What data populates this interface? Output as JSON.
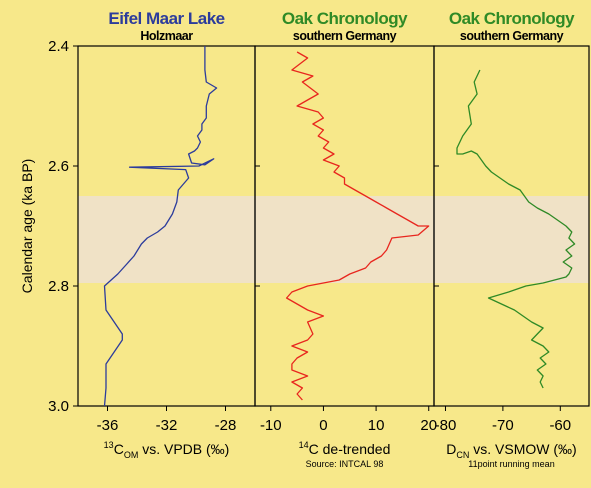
{
  "chart_data": {
    "type": "line",
    "y_axis": {
      "label": "Calendar age (ka BP)",
      "ylim": [
        2.4,
        3.0
      ],
      "reversed": true,
      "ticks": [
        2.4,
        2.6,
        2.8,
        3.0
      ],
      "tick_labels": [
        "2.4",
        "2.6",
        "2.8",
        "3.0"
      ]
    },
    "highlight_band": {
      "from": 2.65,
      "to": 2.795,
      "color": "#f0e2c6"
    },
    "panels": [
      {
        "title": "Eifel Maar Lake",
        "subtitle": "Holzmaar",
        "title_color": "#2c3c9c",
        "color": "#2c3c9c",
        "xlim": [
          -38,
          -26
        ],
        "xticks": [
          -36,
          -32,
          -28
        ],
        "xtick_labels": [
          "-36",
          "-32",
          "-28"
        ],
        "xlabel_super": "13",
        "xlabel_main": "C",
        "xlabel_sub": "OM",
        "xlabel_tail": " vs. VPDB (‰)",
        "note": "",
        "series": {
          "x": [
            -29.4,
            -29.4,
            -29.3,
            -28.6,
            -29.1,
            -29.3,
            -29.3,
            -29.6,
            -29.6,
            -29.9,
            -29.7,
            -29.9,
            -30.1,
            -30.5,
            -30.3,
            -29.4,
            -28.8,
            -29.8,
            -34.5,
            -30.7,
            -30.5,
            -31.2,
            -31.3,
            -31.6,
            -32.1,
            -32.6,
            -33.3,
            -33.7,
            -34.2,
            -35.3,
            -36.2,
            -36.1,
            -35.0,
            -35.0,
            -36.1,
            -36.1,
            -36.2
          ],
          "y": [
            2.4,
            2.44,
            2.46,
            2.47,
            2.48,
            2.5,
            2.52,
            2.53,
            2.54,
            2.55,
            2.56,
            2.57,
            2.575,
            2.58,
            2.595,
            2.598,
            2.588,
            2.6,
            2.602,
            2.606,
            2.62,
            2.64,
            2.66,
            2.68,
            2.7,
            2.71,
            2.72,
            2.73,
            2.75,
            2.78,
            2.8,
            2.84,
            2.88,
            2.89,
            2.93,
            2.97,
            3.0
          ]
        }
      },
      {
        "title": "Oak Chronology",
        "subtitle": "southern Germany",
        "title_color": "#2f8a26",
        "color": "#e8261e",
        "xlim": [
          -13,
          21
        ],
        "xticks": [
          -10,
          0,
          10,
          20
        ],
        "xtick_labels": [
          "-10",
          "0",
          "10",
          "20"
        ],
        "xlabel_super": "14",
        "xlabel_main": "C de-trended",
        "xlabel_sub": "",
        "xlabel_tail": "",
        "note": "Source: INTCAL 98",
        "series": {
          "x": [
            -5,
            -3,
            -6,
            -2,
            -4,
            -1,
            -3,
            -5,
            -1,
            0,
            -2,
            0,
            -1,
            1,
            0,
            2,
            0,
            3,
            2,
            4,
            4,
            6,
            8,
            10,
            12,
            14,
            16,
            18,
            20,
            18,
            13,
            12,
            11,
            9,
            8,
            5,
            3,
            0,
            -3,
            -6,
            -7,
            -5,
            -3,
            0,
            -3,
            -2,
            -3,
            -6,
            -3,
            -5,
            -6,
            -6,
            -3,
            -6,
            -4,
            -5,
            -4
          ],
          "y": [
            2.41,
            2.42,
            2.44,
            2.45,
            2.46,
            2.48,
            2.49,
            2.5,
            2.51,
            2.52,
            2.53,
            2.54,
            2.55,
            2.56,
            2.57,
            2.58,
            2.59,
            2.6,
            2.61,
            2.62,
            2.63,
            2.64,
            2.65,
            2.66,
            2.67,
            2.68,
            2.69,
            2.7,
            2.7,
            2.715,
            2.72,
            2.74,
            2.75,
            2.76,
            2.77,
            2.78,
            2.79,
            2.795,
            2.8,
            2.81,
            2.82,
            2.83,
            2.84,
            2.85,
            2.86,
            2.88,
            2.89,
            2.9,
            2.91,
            2.92,
            2.93,
            2.94,
            2.95,
            2.96,
            2.97,
            2.98,
            2.99
          ]
        }
      },
      {
        "title": "Oak Chronology",
        "subtitle": "southern Germany",
        "title_color": "#2f8a26",
        "color": "#2f8a26",
        "xlim": [
          -82,
          -55
        ],
        "xticks": [
          -80,
          -70,
          -60
        ],
        "xtick_labels": [
          "-80",
          "-70",
          "-60"
        ],
        "xlabel_super": "",
        "xlabel_main": "D",
        "xlabel_sub": "CN",
        "xlabel_tail": " vs. VSMOW (‰)",
        "note": "11point running mean",
        "series": {
          "x": [
            -74,
            -75,
            -74.5,
            -76,
            -75.5,
            -77,
            -78,
            -78,
            -77,
            -75.5,
            -74.5,
            -73,
            -72,
            -70.5,
            -69,
            -67,
            -65.5,
            -64,
            -62,
            -60.5,
            -59,
            -58,
            -58.5,
            -57.5,
            -59,
            -58,
            -59.5,
            -58,
            -58.5,
            -59,
            -61,
            -63,
            -66,
            -69,
            -72.5,
            -68,
            -65,
            -63,
            -64,
            -65,
            -63,
            -62,
            -63.5,
            -62.5,
            -64,
            -63,
            -63.5,
            -63
          ],
          "y": [
            2.44,
            2.46,
            2.48,
            2.5,
            2.53,
            2.55,
            2.57,
            2.58,
            2.58,
            2.575,
            2.58,
            2.6,
            2.61,
            2.62,
            2.63,
            2.64,
            2.66,
            2.67,
            2.68,
            2.69,
            2.7,
            2.71,
            2.72,
            2.73,
            2.74,
            2.75,
            2.76,
            2.77,
            2.78,
            2.785,
            2.79,
            2.795,
            2.8,
            2.81,
            2.82,
            2.84,
            2.86,
            2.87,
            2.88,
            2.89,
            2.9,
            2.91,
            2.92,
            2.93,
            2.94,
            2.95,
            2.96,
            2.97
          ]
        }
      }
    ]
  }
}
